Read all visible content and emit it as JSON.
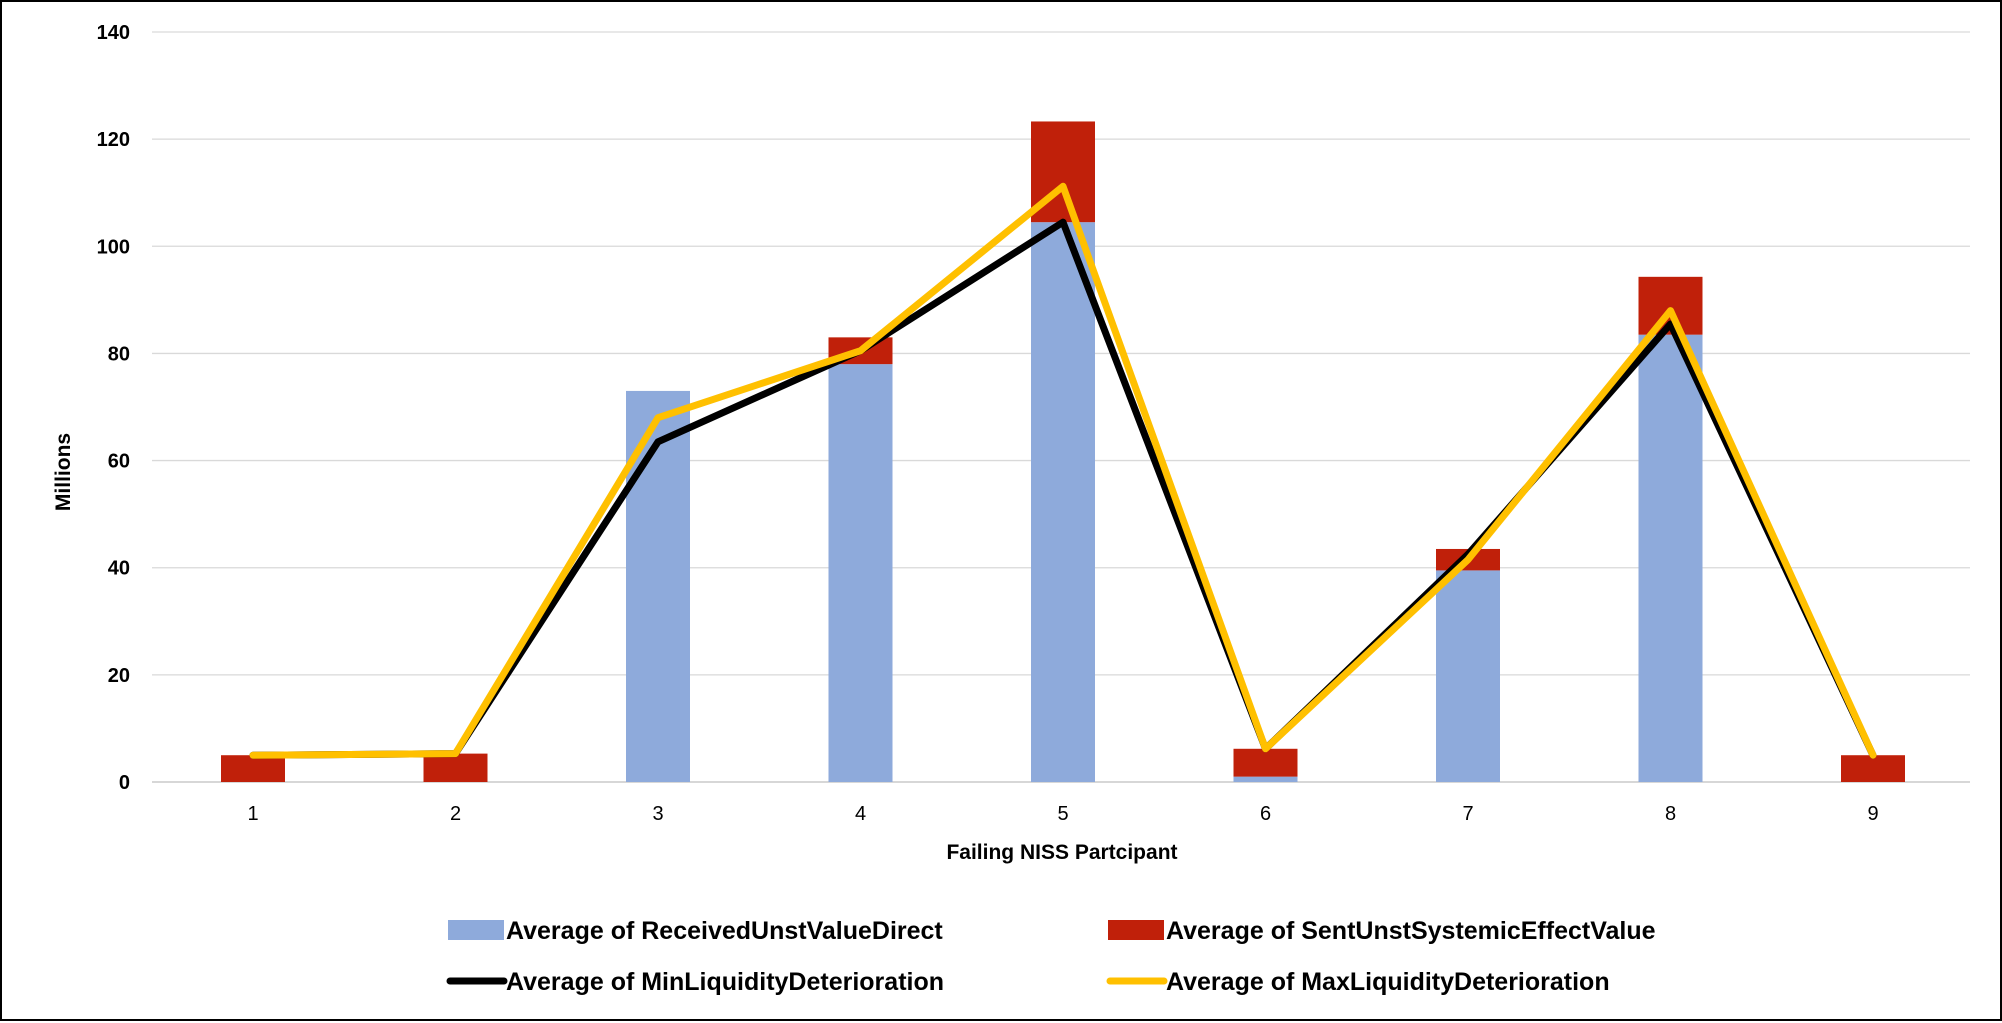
{
  "chart_data": {
    "type": "bar",
    "stacked": true,
    "categories": [
      "1",
      "2",
      "3",
      "4",
      "5",
      "6",
      "7",
      "8",
      "9"
    ],
    "xlabel": "Failing NISS Partcipant",
    "ylabel": "Millions",
    "ylim": [
      0,
      140
    ],
    "yticks": [
      0,
      20,
      40,
      60,
      80,
      100,
      120,
      140
    ],
    "grid": true,
    "legend_position": "bottom",
    "series": [
      {
        "name": "Average of ReceivedUnstValueDirect",
        "kind": "bar",
        "color": "#8EAADB",
        "values": [
          0,
          0,
          73,
          78,
          104.5,
          1,
          39.5,
          83.5,
          0
        ]
      },
      {
        "name": "Average of SentUnstSystemicEffectValue",
        "kind": "bar",
        "color": "#C0200A",
        "values": [
          5,
          5.3,
          0,
          5,
          18.8,
          5.2,
          4,
          10.8,
          5
        ]
      },
      {
        "name": "Average of MinLiquidityDeterioration",
        "kind": "line",
        "color": "#000000",
        "values": [
          5,
          5.3,
          63.5,
          80.5,
          104.5,
          6.2,
          42.5,
          85.5,
          5
        ]
      },
      {
        "name": "Average of MaxLiquidityDeterioration",
        "kind": "line",
        "color": "#FFC000",
        "values": [
          5,
          5.3,
          68,
          80.5,
          111.2,
          6.2,
          41.5,
          88,
          5
        ]
      }
    ]
  }
}
